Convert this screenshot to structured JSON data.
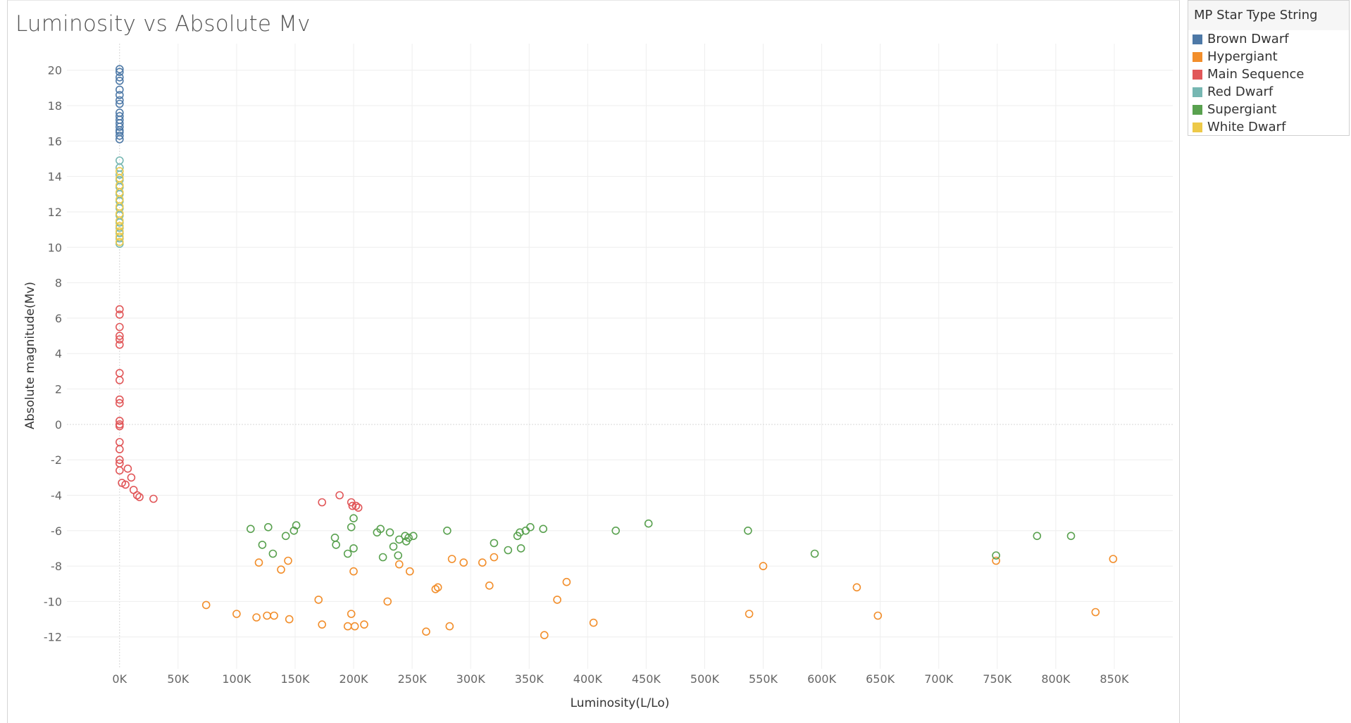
{
  "chart_data": {
    "type": "scatter",
    "title": "Luminosity vs Absolute Mv",
    "xlabel": "Luminosity(L/Lo)",
    "ylabel": "Absolute magnitude(Mv)",
    "xlim": [
      -45000,
      900000
    ],
    "ylim": [
      -13.8,
      21.5
    ],
    "x_ticks": [
      0,
      50000,
      100000,
      150000,
      200000,
      250000,
      300000,
      350000,
      400000,
      450000,
      500000,
      550000,
      600000,
      650000,
      700000,
      750000,
      800000,
      850000
    ],
    "x_tick_labels": [
      "0K",
      "50K",
      "100K",
      "150K",
      "200K",
      "250K",
      "300K",
      "350K",
      "400K",
      "450K",
      "500K",
      "550K",
      "600K",
      "650K",
      "700K",
      "750K",
      "800K",
      "850K"
    ],
    "y_ticks": [
      -12,
      -10,
      -8,
      -6,
      -4,
      -2,
      0,
      2,
      4,
      6,
      8,
      10,
      12,
      14,
      16,
      18,
      20
    ],
    "y_tick_labels": [
      "-12",
      "-10",
      "-8",
      "-6",
      "-4",
      "-2",
      "0",
      "2",
      "4",
      "6",
      "8",
      "10",
      "12",
      "14",
      "16",
      "18",
      "20"
    ],
    "grid": true,
    "marker": "open-circle",
    "legend": {
      "title": "MP Star Type String",
      "placement": "right"
    },
    "series": [
      {
        "name": "Brown Dwarf",
        "color": "#4e79a7",
        "points": [
          [
            0,
            20.06
          ],
          [
            0,
            19.9
          ],
          [
            0,
            19.6
          ],
          [
            0,
            19.4
          ],
          [
            0,
            18.9
          ],
          [
            0,
            18.6
          ],
          [
            0,
            18.3
          ],
          [
            0,
            18.1
          ],
          [
            0,
            17.6
          ],
          [
            0,
            17.4
          ],
          [
            0,
            17.2
          ],
          [
            0,
            17.0
          ],
          [
            0,
            16.8
          ],
          [
            0,
            16.6
          ],
          [
            0,
            16.5
          ],
          [
            0,
            16.3
          ],
          [
            0,
            16.1
          ]
        ]
      },
      {
        "name": "Hypergiant",
        "color": "#f28e2b",
        "points": [
          [
            74000,
            -10.2
          ],
          [
            100000,
            -10.7
          ],
          [
            117000,
            -10.9
          ],
          [
            119000,
            -7.8
          ],
          [
            126000,
            -10.8
          ],
          [
            132000,
            -10.8
          ],
          [
            138000,
            -8.2
          ],
          [
            144000,
            -7.7
          ],
          [
            145000,
            -11.0
          ],
          [
            170000,
            -9.9
          ],
          [
            173000,
            -11.3
          ],
          [
            195000,
            -11.4
          ],
          [
            198000,
            -10.7
          ],
          [
            200000,
            -8.3
          ],
          [
            201000,
            -11.4
          ],
          [
            209000,
            -11.3
          ],
          [
            229000,
            -10.0
          ],
          [
            239000,
            -7.9
          ],
          [
            248000,
            -8.3
          ],
          [
            262000,
            -11.7
          ],
          [
            270000,
            -9.3
          ],
          [
            272000,
            -9.2
          ],
          [
            282000,
            -11.4
          ],
          [
            284000,
            -7.6
          ],
          [
            294000,
            -7.8
          ],
          [
            310000,
            -7.8
          ],
          [
            316000,
            -9.1
          ],
          [
            320000,
            -7.5
          ],
          [
            363000,
            -11.9
          ],
          [
            374000,
            -9.9
          ],
          [
            382000,
            -8.9
          ],
          [
            405000,
            -11.2
          ],
          [
            538000,
            -10.7
          ],
          [
            550000,
            -8.0
          ],
          [
            630000,
            -9.2
          ],
          [
            648000,
            -10.8
          ],
          [
            749000,
            -7.7
          ],
          [
            834000,
            -10.6
          ],
          [
            849000,
            -7.6
          ]
        ]
      },
      {
        "name": "Main Sequence",
        "color": "#e15759",
        "points": [
          [
            0,
            6.5
          ],
          [
            0,
            6.2
          ],
          [
            0,
            5.5
          ],
          [
            0,
            5.0
          ],
          [
            0,
            4.8
          ],
          [
            0,
            4.5
          ],
          [
            0,
            2.9
          ],
          [
            0,
            2.5
          ],
          [
            0,
            1.4
          ],
          [
            0,
            1.2
          ],
          [
            0,
            0.2
          ],
          [
            0,
            0.0
          ],
          [
            0,
            -0.1
          ],
          [
            0,
            -1.0
          ],
          [
            0,
            -1.4
          ],
          [
            0,
            -2.0
          ],
          [
            0,
            -2.2
          ],
          [
            0,
            -2.6
          ],
          [
            2000,
            -3.3
          ],
          [
            5000,
            -3.4
          ],
          [
            7000,
            -2.5
          ],
          [
            10000,
            -3.0
          ],
          [
            12000,
            -3.7
          ],
          [
            15000,
            -4.0
          ],
          [
            17000,
            -4.1
          ],
          [
            29000,
            -4.2
          ],
          [
            173000,
            -4.4
          ],
          [
            188000,
            -4.0
          ],
          [
            198000,
            -4.4
          ],
          [
            199000,
            -4.6
          ],
          [
            202000,
            -4.6
          ],
          [
            204000,
            -4.7
          ]
        ]
      },
      {
        "name": "Red Dwarf",
        "color": "#76b7b2",
        "points": [
          [
            0,
            14.9
          ],
          [
            0,
            14.5
          ],
          [
            0,
            14.1
          ],
          [
            0,
            13.8
          ],
          [
            0,
            13.4
          ],
          [
            0,
            13.0
          ],
          [
            0,
            12.6
          ],
          [
            0,
            12.2
          ],
          [
            0,
            11.8
          ],
          [
            0,
            11.4
          ],
          [
            0,
            11.1
          ],
          [
            0,
            10.8
          ],
          [
            0,
            10.5
          ],
          [
            0,
            10.2
          ]
        ]
      },
      {
        "name": "Supergiant",
        "color": "#59a14f",
        "points": [
          [
            112000,
            -5.9
          ],
          [
            122000,
            -6.8
          ],
          [
            127000,
            -5.8
          ],
          [
            131000,
            -7.3
          ],
          [
            142000,
            -6.3
          ],
          [
            149000,
            -6.0
          ],
          [
            151000,
            -5.7
          ],
          [
            184000,
            -6.4
          ],
          [
            185000,
            -6.8
          ],
          [
            195000,
            -7.3
          ],
          [
            198000,
            -5.8
          ],
          [
            200000,
            -5.3
          ],
          [
            200000,
            -7.0
          ],
          [
            220000,
            -6.1
          ],
          [
            223000,
            -5.9
          ],
          [
            225000,
            -7.5
          ],
          [
            231000,
            -6.1
          ],
          [
            234000,
            -6.9
          ],
          [
            238000,
            -7.4
          ],
          [
            239000,
            -6.5
          ],
          [
            244000,
            -6.3
          ],
          [
            245000,
            -6.6
          ],
          [
            247000,
            -6.4
          ],
          [
            251000,
            -6.3
          ],
          [
            280000,
            -6.0
          ],
          [
            320000,
            -6.7
          ],
          [
            332000,
            -7.1
          ],
          [
            340000,
            -6.3
          ],
          [
            342000,
            -6.1
          ],
          [
            343000,
            -7.0
          ],
          [
            347000,
            -6.0
          ],
          [
            351000,
            -5.8
          ],
          [
            362000,
            -5.9
          ],
          [
            424000,
            -6.0
          ],
          [
            452000,
            -5.6
          ],
          [
            537000,
            -6.0
          ],
          [
            594000,
            -7.3
          ],
          [
            749000,
            -7.4
          ],
          [
            784000,
            -6.3
          ],
          [
            813000,
            -6.3
          ]
        ]
      },
      {
        "name": "White Dwarf",
        "color": "#edc948",
        "points": [
          [
            0,
            14.3
          ],
          [
            0,
            13.9
          ],
          [
            0,
            13.5
          ],
          [
            0,
            13.1
          ],
          [
            0,
            12.7
          ],
          [
            0,
            12.3
          ],
          [
            0,
            11.9
          ],
          [
            0,
            11.5
          ],
          [
            0,
            11.2
          ],
          [
            0,
            10.9
          ],
          [
            0,
            10.6
          ],
          [
            0,
            10.3
          ]
        ]
      }
    ]
  }
}
